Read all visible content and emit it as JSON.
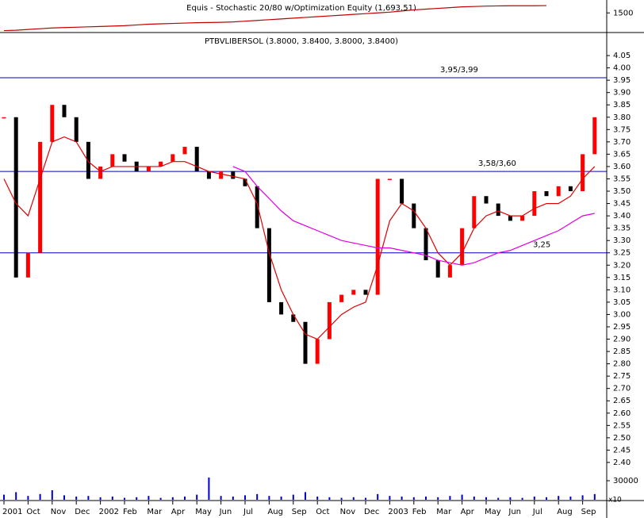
{
  "chart_data": {
    "type": "candlestick",
    "title": "Equis - Stochastic 20/80 w/Optimization Equity (1,693.51)",
    "subtitle": "PTBVLIBERSOL (3.8000, 3.8400, 3.8000, 3.8400)",
    "categories": [
      "2001",
      null,
      "Oct",
      null,
      "Nov",
      null,
      "Dec",
      null,
      "2002",
      null,
      "Feb",
      null,
      "Mar",
      null,
      "Apr",
      null,
      "May",
      null,
      "Jun",
      null,
      "Jul",
      null,
      "Aug",
      null,
      "Sep",
      null,
      "Oct",
      null,
      "Nov",
      null,
      "Dec",
      null,
      "2003",
      null,
      "Feb",
      null,
      "Mar",
      null,
      "Apr",
      null,
      "May",
      null,
      "Jun",
      null,
      "Jul",
      null,
      "Aug",
      null,
      "Sep",
      null
    ],
    "up_color": "#ff0000",
    "down_color": "#000000",
    "series": [
      {
        "name": "close",
        "values": [
          3.8,
          3.15,
          3.25,
          3.7,
          3.85,
          3.8,
          3.7,
          3.55,
          3.6,
          3.65,
          3.62,
          3.58,
          3.6,
          3.62,
          3.65,
          3.68,
          3.58,
          3.55,
          3.58,
          3.55,
          3.52,
          3.35,
          3.05,
          3.0,
          2.97,
          2.8,
          2.9,
          3.05,
          3.08,
          3.1,
          3.08,
          3.55,
          3.55,
          3.45,
          3.35,
          3.22,
          3.15,
          3.2,
          3.35,
          3.48,
          3.45,
          3.4,
          3.38,
          3.4,
          3.5,
          3.48,
          3.52,
          3.5,
          3.65,
          3.8
        ]
      },
      {
        "name": "ma",
        "color": "#e00000",
        "values": [
          3.55,
          3.45,
          3.4,
          3.55,
          3.7,
          3.72,
          3.7,
          3.62,
          3.58,
          3.6,
          3.6,
          3.6,
          3.6,
          3.6,
          3.62,
          3.62,
          3.6,
          3.58,
          3.57,
          3.56,
          3.55,
          3.45,
          3.25,
          3.1,
          3.0,
          2.92,
          2.9,
          2.95,
          3.0,
          3.03,
          3.05,
          3.2,
          3.38,
          3.45,
          3.42,
          3.35,
          3.25,
          3.2,
          3.25,
          3.35,
          3.4,
          3.42,
          3.4,
          3.4,
          3.43,
          3.45,
          3.45,
          3.48,
          3.55,
          3.6
        ]
      },
      {
        "name": "long-ma",
        "color": "#e000e0",
        "values": [
          null,
          null,
          null,
          null,
          null,
          null,
          null,
          null,
          null,
          null,
          null,
          null,
          null,
          null,
          null,
          null,
          null,
          null,
          null,
          3.6,
          3.58,
          3.52,
          3.47,
          3.42,
          3.38,
          3.36,
          3.34,
          3.32,
          3.3,
          3.29,
          3.28,
          3.27,
          3.27,
          3.26,
          3.25,
          3.24,
          3.22,
          3.21,
          3.2,
          3.21,
          3.23,
          3.25,
          3.26,
          3.28,
          3.3,
          3.32,
          3.34,
          3.37,
          3.4,
          3.41
        ]
      },
      {
        "name": "equity",
        "axis": "y2",
        "color": "#c00000",
        "values": [
          1030,
          1040,
          1060,
          1080,
          1100,
          1110,
          1120,
          1130,
          1140,
          1150,
          1160,
          1180,
          1200,
          1210,
          1220,
          1230,
          1240,
          1245,
          1250,
          1260,
          1280,
          1300,
          1320,
          1340,
          1360,
          1380,
          1400,
          1420,
          1440,
          1460,
          1480,
          1500,
          1520,
          1550,
          1580,
          1600,
          1620,
          1640,
          1660,
          1670,
          1680,
          1685,
          1690,
          1690,
          1690,
          1693.51,
          null,
          null,
          null,
          null
        ]
      }
    ],
    "volume": {
      "values": [
        8000,
        12000,
        6000,
        9000,
        15000,
        7000,
        5000,
        6000,
        4000,
        5000,
        3000,
        4000,
        6000,
        3000,
        4000,
        5000,
        8000,
        35000,
        6000,
        5000,
        7000,
        9000,
        6000,
        5000,
        8000,
        12000,
        5000,
        4000,
        3000,
        4000,
        3000,
        9000,
        6000,
        5000,
        4000,
        5000,
        4000,
        6000,
        8000,
        5000,
        4000,
        3000,
        4000,
        3000,
        5000,
        4000,
        6000,
        5000,
        7000,
        9000
      ],
      "ylim": [
        0,
        40000
      ],
      "yticks": [
        30000
      ],
      "unit_label": "x10"
    },
    "ylim": [
      2.35,
      4.1
    ],
    "yticks": [
      4.05,
      {
        "value": 4,
        "label": "4.00"
      },
      3.95,
      {
        "value": 3.9,
        "label": "3.90"
      },
      3.85,
      {
        "value": 3.8,
        "label": "3.80"
      },
      3.75,
      {
        "value": 3.7,
        "label": "3.70"
      },
      3.65,
      {
        "value": 3.6,
        "label": "3.60"
      },
      3.55,
      {
        "value": 3.5,
        "label": "3.50"
      },
      3.45,
      {
        "value": 3.4,
        "label": "3.40"
      },
      3.35,
      {
        "value": 3.3,
        "label": "3.30"
      },
      3.25,
      {
        "value": 3.2,
        "label": "3.20"
      },
      3.15,
      {
        "value": 3.1,
        "label": "3.10"
      },
      3.05,
      {
        "value": 3,
        "label": "3.00"
      },
      2.95,
      {
        "value": 2.9,
        "label": "2.90"
      },
      2.85,
      {
        "value": 2.8,
        "label": "2.80"
      },
      2.75,
      {
        "value": 2.7,
        "label": "2.70"
      },
      2.65,
      {
        "value": 2.6,
        "label": "2.60"
      },
      2.55,
      {
        "value": 2.5,
        "label": "2.50"
      },
      2.45,
      {
        "value": 2.4,
        "label": "2.40"
      }
    ],
    "y2lim": [
      1000,
      1800
    ],
    "y2ticks": [
      1500
    ],
    "hlines": [
      {
        "value": 3.96,
        "label": "3,95/3,99",
        "color": "#0000cc"
      },
      {
        "value": 3.58,
        "label": "3,58/3,60",
        "color": "#0000cc"
      },
      {
        "value": 3.25,
        "label": "3,25",
        "color": "#0000cc"
      }
    ]
  }
}
